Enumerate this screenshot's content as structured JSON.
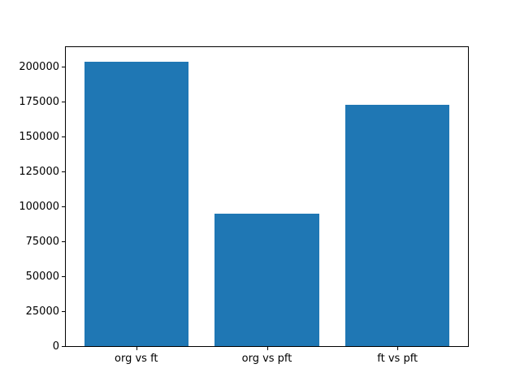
{
  "figure": {
    "background": "#ffffff"
  },
  "chart_data": {
    "type": "bar",
    "title": "",
    "xlabel": "",
    "ylabel": "",
    "categories": [
      "org vs ft",
      "org vs pft",
      "ft vs pft"
    ],
    "values": [
      204000,
      95000,
      173000
    ],
    "yticks": [
      0,
      25000,
      50000,
      75000,
      100000,
      125000,
      150000,
      175000,
      200000
    ],
    "ytick_labels": [
      "0",
      "25000",
      "50000",
      "75000",
      "100000",
      "125000",
      "150000",
      "175000",
      "200000"
    ],
    "ylim": [
      0,
      214200
    ],
    "xlim": [
      -0.54,
      2.54
    ],
    "bar_width": 0.8,
    "bar_color": "#1f77b4",
    "axis_color": "#000000",
    "grid": false,
    "legend": null
  }
}
